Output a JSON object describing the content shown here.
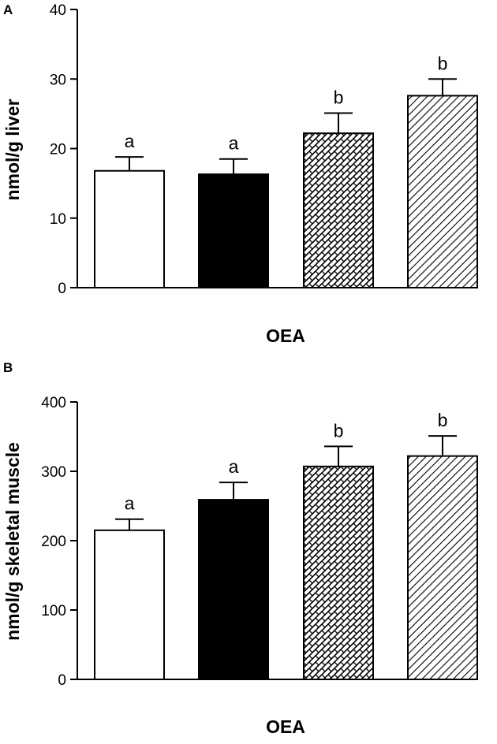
{
  "chart_data": [
    {
      "type": "bar",
      "panel": "A",
      "ylabel": "nmol/g liver",
      "xlabel": "OEA",
      "ylim": [
        0,
        40
      ],
      "yticks": [
        "0",
        "10",
        "20",
        "30",
        "40"
      ],
      "grid": false,
      "bars": [
        {
          "value": 16.8,
          "error": 2.0,
          "label": "a",
          "fill": "white"
        },
        {
          "value": 16.3,
          "error": 2.2,
          "label": "a",
          "fill": "black"
        },
        {
          "value": 22.2,
          "error": 2.9,
          "label": "b",
          "fill": "crosshatch"
        },
        {
          "value": 27.6,
          "error": 2.4,
          "label": "b",
          "fill": "diagonal"
        }
      ]
    },
    {
      "type": "bar",
      "panel": "B",
      "ylabel": "nmol/g skeletal muscle",
      "xlabel": "OEA",
      "ylim": [
        0,
        400
      ],
      "yticks": [
        "0",
        "100",
        "200",
        "300",
        "400"
      ],
      "grid": false,
      "bars": [
        {
          "value": 215,
          "error": 16,
          "label": "a",
          "fill": "white"
        },
        {
          "value": 259,
          "error": 25,
          "label": "a",
          "fill": "black"
        },
        {
          "value": 307,
          "error": 29,
          "label": "b",
          "fill": "crosshatch"
        },
        {
          "value": 322,
          "error": 29,
          "label": "b",
          "fill": "diagonal"
        }
      ]
    }
  ],
  "colors": {
    "ink": "#000000",
    "background": "#ffffff"
  }
}
